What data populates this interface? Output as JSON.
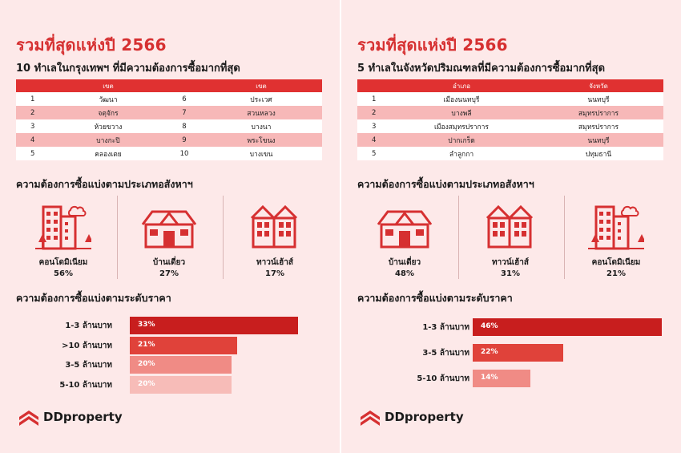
{
  "left": {
    "title": "รวมที่สุดแห่งปี 2566",
    "subtitle": "10 ทำเลในกรุงเทพฯ ที่มีความต้องการซื้อมากที่สุด",
    "headers": [
      "",
      "เขต",
      "",
      "เขต"
    ],
    "rows": [
      [
        "1",
        "วัฒนา",
        "6",
        "ประเวศ"
      ],
      [
        "2",
        "จตุจักร",
        "7",
        "สวนหลวง"
      ],
      [
        "3",
        "ห้วยขวาง",
        "8",
        "บางนา"
      ],
      [
        "4",
        "บางกะปิ",
        "9",
        "พระโขนง"
      ],
      [
        "5",
        "คลองเตย",
        "10",
        "บางเขน"
      ]
    ],
    "type_heading": "ความต้องการซื้อแบ่งตามประเภทอสังหาฯ",
    "types": [
      {
        "icon": "condo-icon",
        "label": "คอนโดมิเนียม",
        "pct": "56%"
      },
      {
        "icon": "house-icon",
        "label": "บ้านเดี่ยว",
        "pct": "27%"
      },
      {
        "icon": "townhouse-icon",
        "label": "ทาวน์เฮ้าส์",
        "pct": "17%"
      }
    ],
    "price_heading": "ความต้องการซื้อแบ่งตามระดับราคา",
    "bars": [
      {
        "label": "1-3 ล้านบาท",
        "value": 33,
        "text": "33%",
        "color": "#c81e1e"
      },
      {
        "label": ">10 ล้านบาท",
        "value": 21,
        "text": "21%",
        "color": "#e0423a"
      },
      {
        "label": "3-5 ล้านบาท",
        "value": 20,
        "text": "20%",
        "color": "#f08b85"
      },
      {
        "label": "5-10 ล้านบาท",
        "value": 20,
        "text": "20%",
        "color": "#f7bcb8"
      }
    ],
    "logo": "DDproperty"
  },
  "right": {
    "title": "รวมที่สุดแห่งปี 2566",
    "subtitle": "5 ทำเลในจังหวัดปริมณฑลที่มีความต้องการซื้อมากที่สุด",
    "headers": [
      "",
      "อำเภอ",
      "จังหวัด"
    ],
    "rows": [
      [
        "1",
        "เมืองนนทบุรี",
        "นนทบุรี"
      ],
      [
        "2",
        "บางพลี",
        "สมุทรปราการ"
      ],
      [
        "3",
        "เมืองสมุทรปราการ",
        "สมุทรปราการ"
      ],
      [
        "4",
        "ปากเกร็ด",
        "นนทบุรี"
      ],
      [
        "5",
        "ลำลูกกา",
        "ปทุมธานี"
      ]
    ],
    "type_heading": "ความต้องการซื้อแบ่งตามประเภทอสังหาฯ",
    "types": [
      {
        "icon": "house-icon",
        "label": "บ้านเดี่ยว",
        "pct": "48%"
      },
      {
        "icon": "townhouse-icon",
        "label": "ทาวน์เฮ้าส์",
        "pct": "31%"
      },
      {
        "icon": "condo-icon",
        "label": "คอนโดมิเนียม",
        "pct": "21%"
      }
    ],
    "price_heading": "ความต้องการซื้อแบ่งตามระดับราคา",
    "bars": [
      {
        "label": "1-3 ล้านบาท",
        "value": 46,
        "text": "46%",
        "color": "#c81e1e"
      },
      {
        "label": "3-5 ล้านบาท",
        "value": 22,
        "text": "22%",
        "color": "#e0423a"
      },
      {
        "label": "5-10 ล้านบาท",
        "value": 14,
        "text": "14%",
        "color": "#f08b85"
      }
    ],
    "logo": "DDproperty"
  }
}
